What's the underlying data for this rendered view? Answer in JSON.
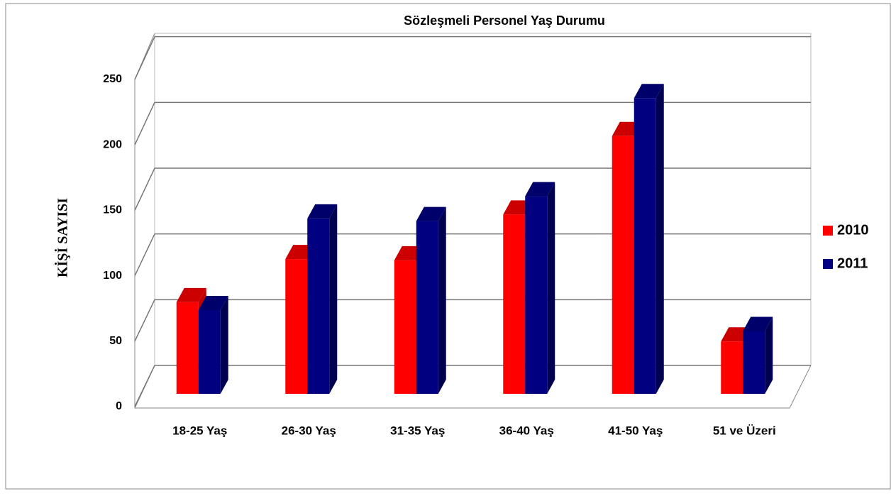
{
  "chart_data": {
    "type": "bar3d",
    "title": "Sözleşmeli Personel Yaş Durumu",
    "y_label": "KİŞİ SAYISI",
    "categories": [
      "18-25 Yaş",
      "26-30 Yaş",
      "31-35 Yaş",
      "36-40 Yaş",
      "41-50 Yaş",
      "51 ve Üzeri"
    ],
    "series": [
      {
        "name": "2010",
        "color": "#ff0000",
        "values": [
          70,
          103,
          102,
          137,
          197,
          40
        ]
      },
      {
        "name": "2011",
        "color": "#000080",
        "values": [
          64,
          134,
          132,
          151,
          226,
          48
        ]
      }
    ],
    "ylim": [
      0,
      250
    ],
    "yticks": [
      0,
      50,
      100,
      150,
      200,
      250
    ],
    "grid": true,
    "legend": "right"
  }
}
